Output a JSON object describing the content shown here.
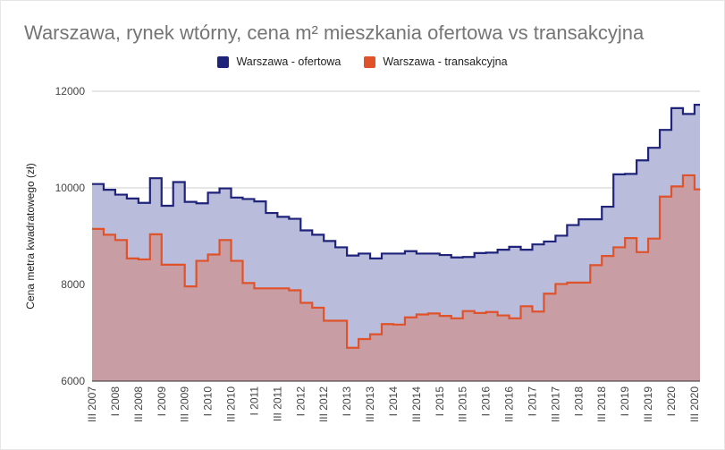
{
  "chart_data": {
    "type": "area",
    "subtype": "stepped",
    "title": "Warszawa, rynek wtórny, cena m² mieszkania ofertowa vs transakcyjna",
    "xlabel": "",
    "ylabel": "Cena metra kwadratowego (zł)",
    "ylim": [
      6000,
      12000
    ],
    "yticks": [
      6000,
      8000,
      10000,
      12000
    ],
    "grid": true,
    "legend": "top",
    "categories": [
      "III 2007",
      "IV 2007",
      "I 2008",
      "II 2008",
      "III 2008",
      "IV 2008",
      "I 2009",
      "II 2009",
      "III 2009",
      "IV 2009",
      "I 2010",
      "II 2010",
      "III 2010",
      "IV 2010",
      "I 2011",
      "II 2011",
      "III 2011",
      "IV 2011",
      "I 2012",
      "II 2012",
      "III 2012",
      "IV 2012",
      "I 2013",
      "II 2013",
      "III 2013",
      "IV 2013",
      "I 2014",
      "II 2014",
      "III 2014",
      "IV 2014",
      "I 2015",
      "II 2015",
      "III 2015",
      "IV 2015",
      "I 2016",
      "II 2016",
      "III 2016",
      "IV 2016",
      "I 2017",
      "II 2017",
      "III 2017",
      "IV 2017",
      "I 2018",
      "II 2018",
      "III 2018",
      "IV 2018",
      "I 2019",
      "II 2019",
      "III 2019",
      "IV 2019",
      "I 2020",
      "II 2020",
      "III 2020"
    ],
    "tick_labels": [
      "III 2007",
      "I 2008",
      "III 2008",
      "I 2009",
      "III 2009",
      "I 2010",
      "III 2010",
      "I 2011",
      "III 2011",
      "I 2012",
      "III 2012",
      "I 2013",
      "III 2013",
      "I 2014",
      "III 2014",
      "I 2015",
      "III 2015",
      "I 2016",
      "III 2016",
      "I 2017",
      "III 2017",
      "I 2018",
      "III 2018",
      "I 2019",
      "III 2019",
      "I 2020",
      "III 2020"
    ],
    "series": [
      {
        "name": "Warszawa - ofertowa",
        "color": "#1f237a",
        "fill": "#b9bddb",
        "values": [
          10080,
          9960,
          9860,
          9780,
          9690,
          10200,
          9630,
          10120,
          9710,
          9680,
          9900,
          9990,
          9800,
          9770,
          9720,
          9480,
          9400,
          9360,
          9120,
          9030,
          8900,
          8770,
          8600,
          8640,
          8540,
          8640,
          8640,
          8690,
          8640,
          8640,
          8610,
          8560,
          8570,
          8650,
          8660,
          8720,
          8780,
          8720,
          8830,
          8890,
          9010,
          9230,
          9350,
          9350,
          9610,
          10280,
          10290,
          10570,
          10830,
          11200,
          11650,
          11530,
          11720
        ]
      },
      {
        "name": "Warszawa - transakcyjna",
        "color": "#e0522a",
        "fill": "#c99a9f",
        "values": [
          9150,
          9030,
          8920,
          8540,
          8520,
          9040,
          8410,
          8410,
          7960,
          8490,
          8620,
          8920,
          8490,
          8030,
          7920,
          7920,
          7920,
          7880,
          7620,
          7520,
          7250,
          7250,
          6690,
          6870,
          6970,
          7180,
          7170,
          7320,
          7380,
          7400,
          7350,
          7300,
          7450,
          7410,
          7430,
          7360,
          7300,
          7550,
          7440,
          7810,
          8010,
          8040,
          8040,
          8400,
          8590,
          8770,
          8960,
          8670,
          8950,
          9820,
          10030,
          10260,
          9970
        ]
      }
    ]
  }
}
